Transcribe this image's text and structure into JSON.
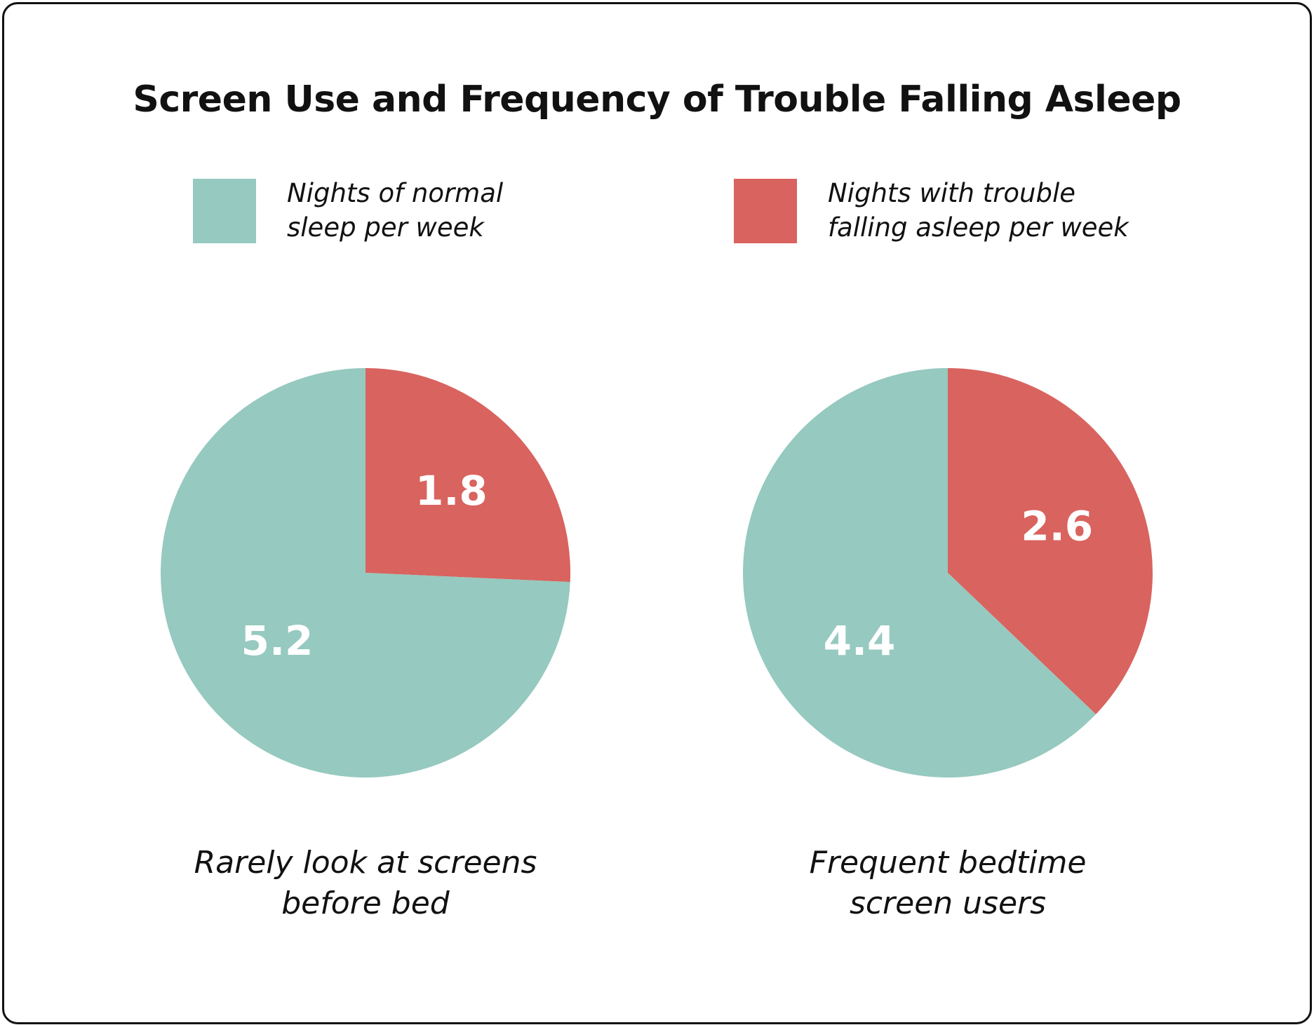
{
  "colors": {
    "normal": "#96c9bf",
    "trouble": "#d9635f",
    "border": "#111111",
    "background": "#ffffff"
  },
  "chart_data": {
    "type": "pie",
    "title": "Screen Use and Frequency of Trouble Falling Asleep",
    "legend_position": "top",
    "legend": [
      {
        "name": "Nights of normal\nsleep per week",
        "color": "#96c9bf"
      },
      {
        "name": "Nights with trouble\nfalling asleep per week",
        "color": "#d9635f"
      }
    ],
    "pies": [
      {
        "label": "Rarely look at screens\nbefore bed",
        "slices": [
          {
            "series": "normal",
            "value": 5.2,
            "display": "5.2"
          },
          {
            "series": "trouble",
            "value": 1.8,
            "display": "1.8"
          }
        ]
      },
      {
        "label": "Frequent bedtime\nscreen users",
        "slices": [
          {
            "series": "normal",
            "value": 4.4,
            "display": "4.4"
          },
          {
            "series": "trouble",
            "value": 2.6,
            "display": "2.6"
          }
        ]
      }
    ]
  }
}
